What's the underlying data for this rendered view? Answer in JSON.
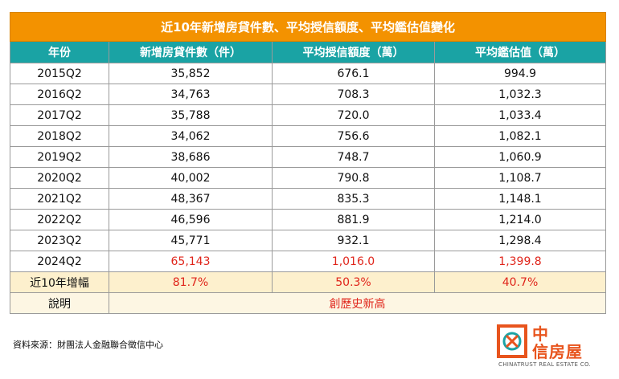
{
  "table": {
    "title": "近10年新增房貸件數、平均授信額度、平均鑑估值變化",
    "headers": [
      "年份",
      "新增房貸件數（件）",
      "平均授信額度（萬）",
      "平均鑑估值（萬）"
    ],
    "rows": [
      [
        "2015Q2",
        "35,852",
        "676.1",
        "994.9"
      ],
      [
        "2016Q2",
        "34,763",
        "708.3",
        "1,032.3"
      ],
      [
        "2017Q2",
        "35,788",
        "720.0",
        "1,033.4"
      ],
      [
        "2018Q2",
        "34,062",
        "756.6",
        "1,082.1"
      ],
      [
        "2019Q2",
        "38,686",
        "748.7",
        "1,060.9"
      ],
      [
        "2020Q2",
        "40,002",
        "790.8",
        "1,108.7"
      ],
      [
        "2021Q2",
        "48,367",
        "835.3",
        "1,148.1"
      ],
      [
        "2022Q2",
        "46,596",
        "881.9",
        "1,214.0"
      ],
      [
        "2023Q2",
        "45,771",
        "932.1",
        "1,298.4"
      ],
      [
        "2024Q2",
        "65,143",
        "1,016.0",
        "1,399.8"
      ]
    ],
    "growth": [
      "近10年增幅",
      "81.7%",
      "50.3%",
      "40.7%"
    ],
    "note": [
      "說明",
      "創歷史新高"
    ]
  },
  "source": "資料來源：財團法人金融聯合徵信中心",
  "logo": {
    "name_1": "中",
    "name_2": "信房屋",
    "english": "CHINATRUST REAL ESTATE CO."
  }
}
